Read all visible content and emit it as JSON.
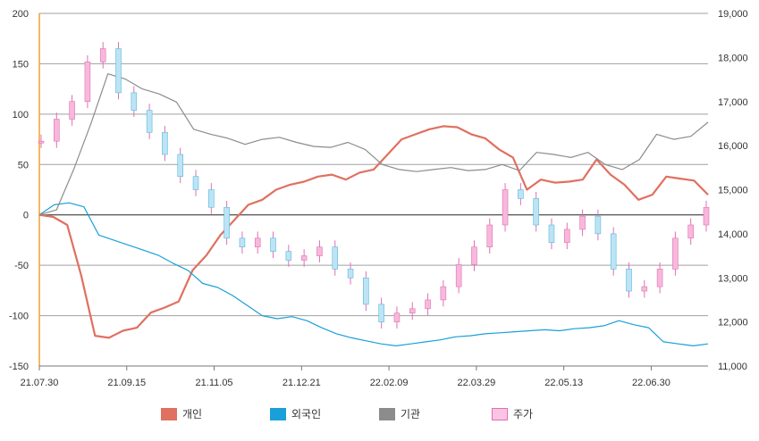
{
  "chart_data": {
    "type": "line",
    "title": "",
    "xlabel": "",
    "ylabel": "",
    "x_ticks": [
      "21.07.30",
      "21.09.15",
      "21.11.05",
      "21.12.21",
      "22.02.09",
      "22.03.29",
      "22.05.13",
      "22.06.30"
    ],
    "ylim_left": [
      -150,
      200
    ],
    "yticks_left": [
      "200",
      "150",
      "100",
      "50",
      "0",
      "-50",
      "-100",
      "-150"
    ],
    "ylim_right": [
      11000,
      19000
    ],
    "yticks_right": [
      "19,000",
      "18,000",
      "17,000",
      "16,000",
      "15,000",
      "14,000",
      "13,000",
      "12,000",
      "11,000"
    ],
    "grid": true,
    "legend_position": "bottom",
    "series": [
      {
        "name": "개인",
        "color": "#e07060",
        "axis": "left",
        "values": [
          0,
          -2,
          -10,
          -60,
          -120,
          -122,
          -115,
          -112,
          -97,
          -92,
          -86,
          -55,
          -40,
          -20,
          -5,
          10,
          15,
          25,
          30,
          33,
          38,
          40,
          35,
          42,
          45,
          60,
          75,
          80,
          85,
          88,
          87,
          80,
          76,
          65,
          57,
          25,
          35,
          32,
          33,
          35,
          55,
          40,
          30,
          15,
          20,
          38,
          36,
          34,
          20
        ]
      },
      {
        "name": "외국인",
        "color": "#1aa0d8",
        "axis": "left",
        "values": [
          0,
          10,
          12,
          8,
          -20,
          -25,
          -30,
          -35,
          -40,
          -48,
          -55,
          -68,
          -72,
          -80,
          -90,
          -100,
          -103,
          -101,
          -105,
          -112,
          -118,
          -122,
          -125,
          -128,
          -130,
          -128,
          -126,
          -124,
          -121,
          -120,
          -118,
          -117,
          -116,
          -115,
          -114,
          -115,
          -113,
          -112,
          -110,
          -105,
          -109,
          -112,
          -126,
          -128,
          -130,
          -128
        ]
      },
      {
        "name": "기관",
        "color": "#8c8c8c",
        "axis": "left",
        "values": [
          0,
          5,
          45,
          90,
          140,
          135,
          125,
          120,
          112,
          85,
          80,
          76,
          70,
          75,
          77,
          72,
          68,
          67,
          72,
          65,
          50,
          45,
          43,
          45,
          47,
          44,
          45,
          50,
          44,
          62,
          60,
          57,
          62,
          50,
          45,
          55,
          80,
          75,
          78,
          92
        ]
      },
      {
        "name": "주가",
        "color": "#f48fc8",
        "axis": "right",
        "values": [
          16100,
          16600,
          17000,
          17900,
          18200,
          17200,
          16800,
          16300,
          15800,
          15300,
          15000,
          14600,
          13900,
          13700,
          13900,
          13600,
          13400,
          13500,
          13700,
          13200,
          13000,
          12400,
          12000,
          12200,
          12300,
          12500,
          12800,
          13300,
          13700,
          14200,
          15000,
          14800,
          14200,
          13800,
          14100,
          14400,
          14000,
          13200,
          12700,
          12800,
          13200,
          13900,
          14200,
          14600
        ]
      }
    ]
  }
}
